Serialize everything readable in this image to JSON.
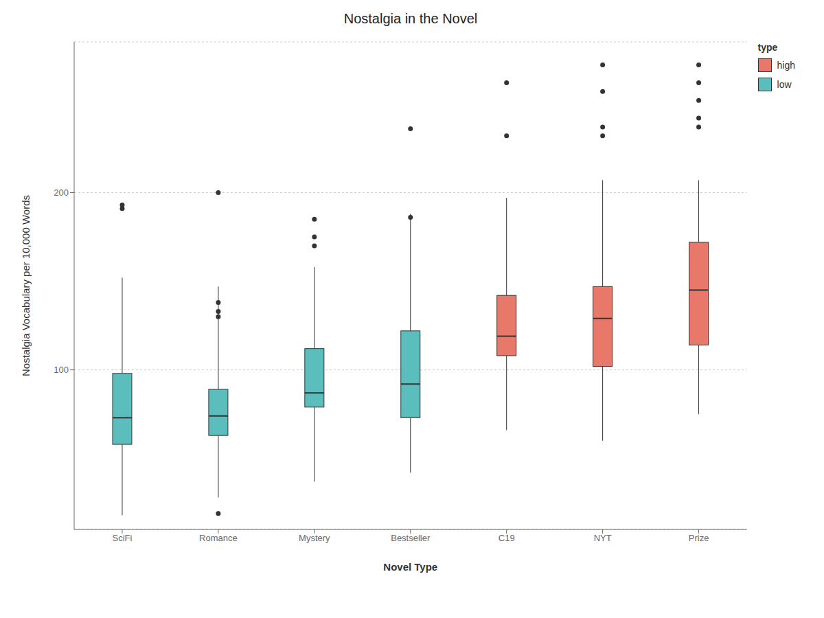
{
  "chart_data": {
    "type": "box",
    "title": "Nostalgia in the Novel",
    "x_label": "Novel Type",
    "y_label": "Nostalgia Vocabulary per 10,000 Words",
    "categories": [
      "SciFi",
      "Romance",
      "Mystery",
      "Bestseller",
      "C19",
      "NYT",
      "Prize"
    ],
    "boxes": [
      {
        "group": "low",
        "q1": 58,
        "median": 73,
        "q3": 98,
        "whislo": 18,
        "whishi": 152,
        "fliers": [
          191,
          193
        ]
      },
      {
        "group": "low",
        "q1": 63,
        "median": 74,
        "q3": 89,
        "whislo": 28,
        "whishi": 147,
        "fliers": [
          130,
          133,
          138,
          200,
          19
        ]
      },
      {
        "group": "low",
        "q1": 79,
        "median": 87,
        "q3": 112,
        "whislo": 37,
        "whishi": 158,
        "fliers": [
          170,
          175,
          185
        ]
      },
      {
        "group": "low",
        "q1": 73,
        "median": 92,
        "q3": 122,
        "whislo": 42,
        "whishi": 188,
        "fliers": [
          236,
          186
        ]
      },
      {
        "group": "high",
        "q1": 108,
        "median": 119,
        "q3": 142,
        "whislo": 66,
        "whishi": 197,
        "fliers": [
          232,
          262
        ]
      },
      {
        "group": "high",
        "q1": 102,
        "median": 129,
        "q3": 147,
        "whislo": 60,
        "whishi": 207,
        "fliers": [
          232,
          237,
          257,
          272
        ]
      },
      {
        "group": "high",
        "q1": 114,
        "median": 145,
        "q3": 172,
        "whislo": 75,
        "whishi": 207,
        "fliers": [
          237,
          242,
          252,
          262,
          272
        ]
      }
    ],
    "groups": [
      {
        "name": "high",
        "color": "#E8786A"
      },
      {
        "name": "low",
        "color": "#5BBDBC"
      }
    ],
    "legend_title": "type",
    "legend": "right",
    "ylim": [
      10,
      285
    ],
    "yticks": [
      100,
      200
    ],
    "grid": true
  }
}
